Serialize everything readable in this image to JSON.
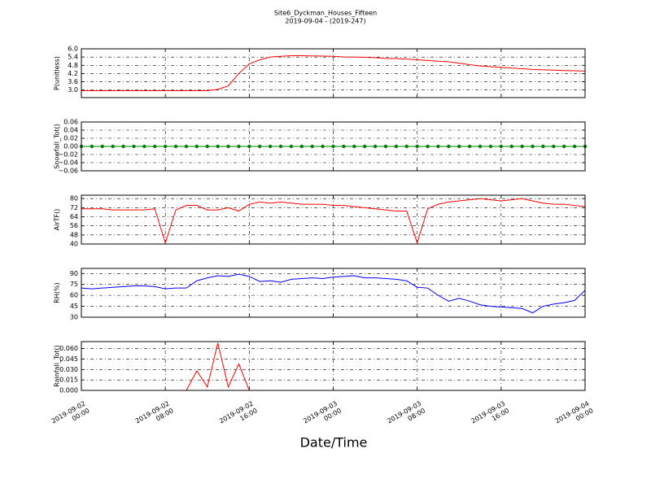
{
  "title": "Site6_Dyckman_Houses_Fifteen",
  "subtitle": "2019-09-04 - (2019-247)",
  "x_label": "Date/Time",
  "x": [
    "2019-09-02 00:00",
    "2019-09-02 01:00",
    "2019-09-02 02:00",
    "2019-09-02 03:00",
    "2019-09-02 04:00",
    "2019-09-02 05:00",
    "2019-09-02 06:00",
    "2019-09-02 07:00",
    "2019-09-02 08:00",
    "2019-09-02 09:00",
    "2019-09-02 10:00",
    "2019-09-02 11:00",
    "2019-09-02 12:00",
    "2019-09-02 13:00",
    "2019-09-02 14:00",
    "2019-09-02 15:00",
    "2019-09-02 16:00",
    "2019-09-02 17:00",
    "2019-09-02 18:00",
    "2019-09-02 19:00",
    "2019-09-02 20:00",
    "2019-09-02 21:00",
    "2019-09-02 22:00",
    "2019-09-02 23:00",
    "2019-09-03 00:00",
    "2019-09-03 01:00",
    "2019-09-03 02:00",
    "2019-09-03 03:00",
    "2019-09-03 04:00",
    "2019-09-03 05:00",
    "2019-09-03 06:00",
    "2019-09-03 07:00",
    "2019-09-03 08:00",
    "2019-09-03 09:00",
    "2019-09-03 10:00",
    "2019-09-03 11:00",
    "2019-09-03 12:00",
    "2019-09-03 13:00",
    "2019-09-03 14:00",
    "2019-09-03 15:00",
    "2019-09-03 16:00",
    "2019-09-03 17:00",
    "2019-09-03 18:00",
    "2019-09-03 19:00",
    "2019-09-03 20:00",
    "2019-09-03 21:00",
    "2019-09-03 22:00",
    "2019-09-03 23:00",
    "2019-09-04 00:00"
  ],
  "xlim": [
    "2019-09-02 00:00",
    "2019-09-04 00:00"
  ],
  "xticks": [
    "2019-09-02 00:00",
    "2019-09-02 08:00",
    "2019-09-02 16:00",
    "2019-09-03 00:00",
    "2019-09-03 08:00",
    "2019-09-03 16:00",
    "2019-09-04 00:00"
  ],
  "chart_data": [
    {
      "type": "line",
      "ylabel": "P(unitless)",
      "color": "#ff0000",
      "grid": true,
      "ylim": [
        2.45,
        6.0
      ],
      "yticks": [
        {
          "value": 3.0,
          "label": "3.0"
        },
        3.6,
        4.2,
        4.8,
        5.4,
        {
          "value": 6.0,
          "label": "6.0"
        }
      ],
      "values": [
        2.95,
        2.95,
        2.95,
        2.95,
        2.95,
        2.95,
        2.95,
        2.95,
        2.95,
        2.95,
        2.95,
        2.95,
        2.95,
        3.05,
        3.3,
        4.2,
        4.9,
        5.2,
        5.4,
        5.45,
        5.5,
        5.5,
        5.48,
        5.47,
        5.45,
        5.4,
        5.4,
        5.38,
        5.36,
        5.3,
        5.28,
        5.25,
        5.2,
        5.15,
        5.1,
        5.05,
        4.95,
        4.85,
        4.75,
        4.7,
        4.65,
        4.6,
        4.55,
        4.5,
        4.47,
        4.45,
        4.42,
        4.4,
        4.38
      ]
    },
    {
      "type": "line",
      "marker": true,
      "ylabel": "Snowfall_Tot()",
      "color": "#008000",
      "grid": true,
      "ylim": [
        -0.06,
        0.06
      ],
      "yticks": [
        {
          "value": -0.06,
          "label": "−0.06"
        },
        {
          "value": -0.04,
          "label": "−0.04"
        },
        {
          "value": -0.02,
          "label": "−0.02"
        },
        {
          "value": 0,
          "label": "0.00"
        },
        0.02,
        0.04,
        0.06
      ],
      "values": [
        0,
        0,
        0,
        0,
        0,
        0,
        0,
        0,
        0,
        0,
        0,
        0,
        0,
        0,
        0,
        0,
        0,
        0,
        0,
        0,
        0,
        0,
        0,
        0,
        0,
        0,
        0,
        0,
        0,
        0,
        0,
        0,
        0,
        0,
        0,
        0,
        0,
        0,
        0,
        0,
        0,
        0,
        0,
        0,
        0,
        0,
        0,
        0,
        0
      ]
    },
    {
      "type": "line",
      "ylabel": "AirTF()",
      "color": "#ff0000",
      "grid": true,
      "ylim": [
        40,
        83
      ],
      "yticks": [
        40,
        48,
        56,
        64,
        72,
        80
      ],
      "values": [
        71,
        71,
        71,
        70,
        70,
        70,
        70,
        71,
        41,
        70,
        74,
        74,
        70,
        70,
        72,
        69,
        75,
        77,
        76,
        77,
        76,
        75,
        75,
        75,
        74,
        74,
        73,
        72,
        71,
        70,
        69,
        69,
        41,
        71,
        75,
        77,
        78,
        79,
        80,
        79,
        78,
        79,
        80,
        78,
        76,
        75,
        75,
        74,
        73
      ]
    },
    {
      "type": "line",
      "ylabel": "RH(%)",
      "color": "#0000ff",
      "grid": true,
      "ylim": [
        30,
        97
      ],
      "yticks": [
        30,
        45,
        60,
        75,
        90
      ],
      "values": [
        70,
        69,
        70,
        71,
        72,
        73,
        73,
        72,
        69,
        70,
        70,
        80,
        84,
        87,
        86,
        89,
        86,
        79,
        80,
        78,
        82,
        83,
        84,
        83,
        85,
        86,
        87,
        84,
        84,
        83,
        82,
        80,
        71,
        70,
        60,
        52,
        56,
        52,
        47,
        45,
        44,
        43,
        42,
        36,
        45,
        48,
        50,
        53,
        67
      ]
    },
    {
      "type": "line",
      "ylabel": "Rainfall_Tot()",
      "color": "#ff0000",
      "grid": true,
      "ylim": [
        0,
        0.07
      ],
      "yticks": [
        {
          "value": 0,
          "label": "0.000"
        },
        0.015,
        {
          "value": 0.03,
          "label": "0.030"
        },
        0.045,
        {
          "value": 0.06,
          "label": "0.060"
        }
      ],
      "values": [
        0,
        0,
        0,
        0,
        0,
        0,
        0,
        0,
        0,
        0,
        0,
        0.028,
        0.005,
        0.068,
        0.005,
        0.038,
        0,
        0,
        0,
        0,
        0,
        0,
        0,
        0,
        0,
        0,
        0,
        0,
        0,
        0,
        0,
        0,
        0,
        0,
        0,
        0,
        0,
        0,
        0,
        0,
        0,
        0,
        0,
        0,
        0,
        0,
        0,
        0,
        0
      ]
    }
  ]
}
